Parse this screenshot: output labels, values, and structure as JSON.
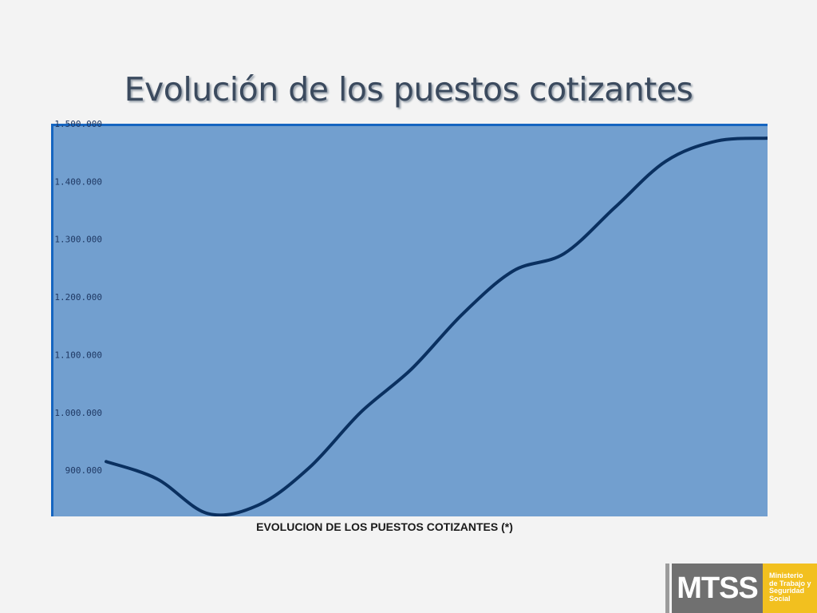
{
  "title": "Evolución de los puestos cotizantes",
  "caption": "EVOLUCION DE LOS PUESTOS COTIZANTES (*)",
  "colors": {
    "plot_background": "#729fcf",
    "plot_border": "#1565c0",
    "line": "#0a3060",
    "tick_text": "#1f3863",
    "logo_gray": "#707070",
    "logo_yellow": "#f2c01f"
  },
  "chart_data": {
    "type": "line",
    "title": "",
    "xlabel": "EVOLUCION DE LOS PUESTOS COTIZANTES (*)",
    "ylabel": "",
    "x": [
      1,
      2,
      3,
      4,
      5,
      6,
      7,
      8,
      9,
      10,
      11,
      12,
      13,
      14
    ],
    "xticks_visible": false,
    "ylim": [
      820000,
      1500000
    ],
    "yticks": [
      900000,
      1000000,
      1100000,
      1200000,
      1300000,
      1400000,
      1500000
    ],
    "ytick_labels": [
      "900.000",
      "1.000.000",
      "1.100.000",
      "1.200.000",
      "1.300.000",
      "1.400.000",
      "1.500.000"
    ],
    "grid": false,
    "legend": "none",
    "smooth": true,
    "series": [
      {
        "values": [
          915000,
          885000,
          825000,
          840000,
          905000,
          1000000,
          1075000,
          1170000,
          1245000,
          1275000,
          1355000,
          1435000,
          1470000,
          1475000
        ]
      }
    ]
  },
  "logo": {
    "name": "MTSS",
    "lines": [
      "Ministerio",
      "de Trabajo y",
      "Seguridad",
      "Social"
    ]
  }
}
